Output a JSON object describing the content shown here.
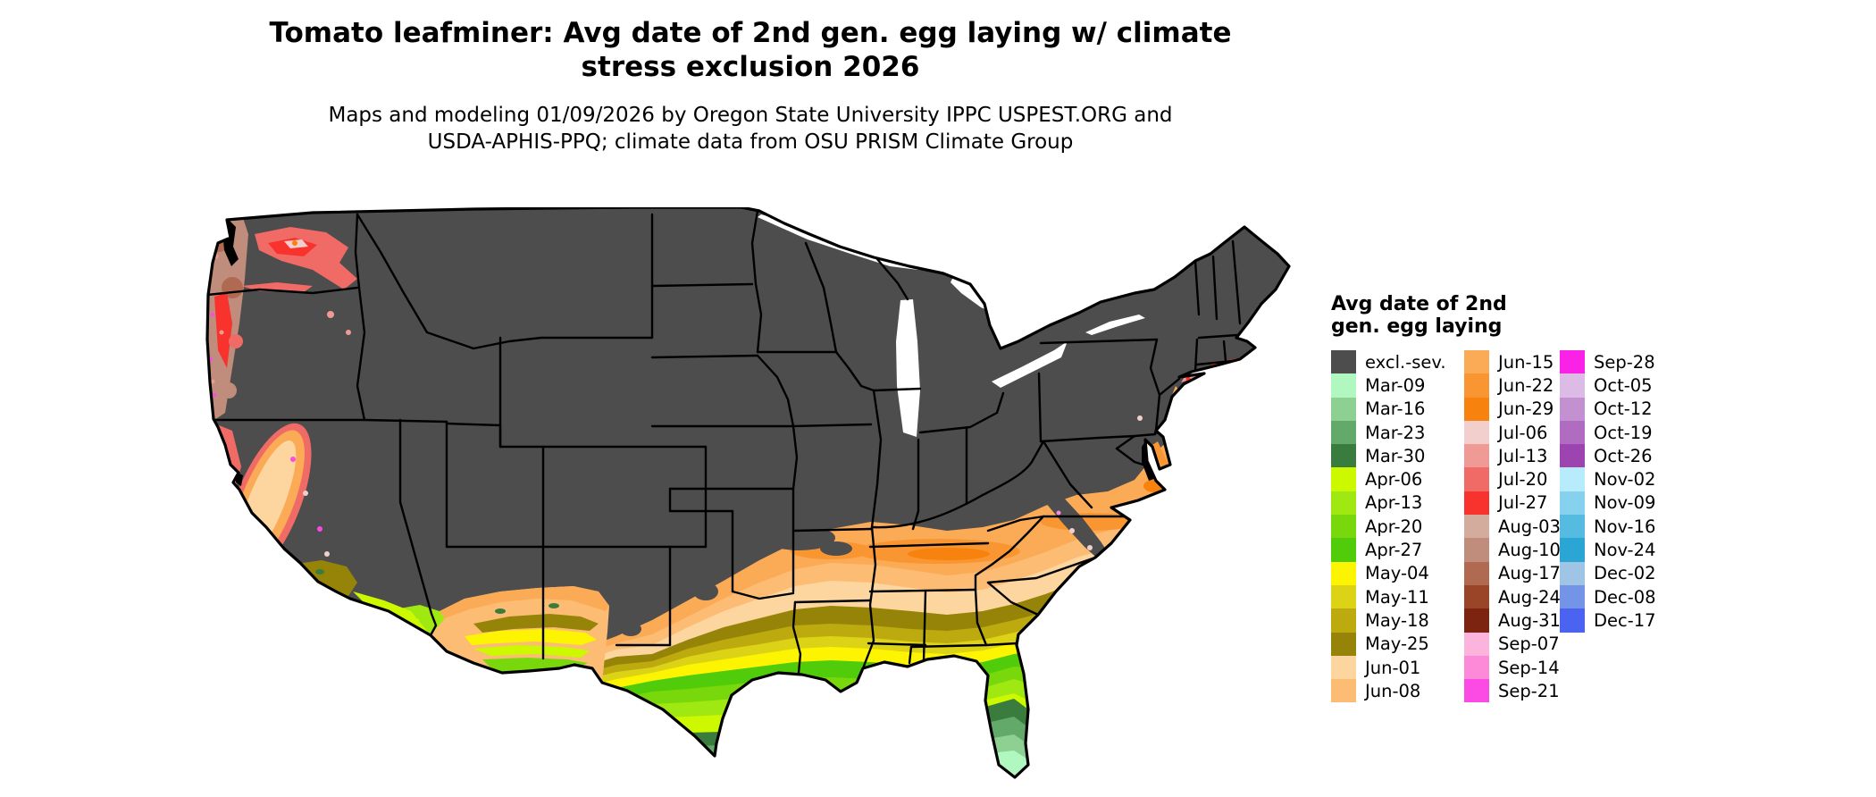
{
  "title": {
    "line1": "Tomato leafminer: Avg date of 2nd gen. egg laying w/ climate",
    "line2": "stress exclusion 2026"
  },
  "subtitle": {
    "line1": "Maps and modeling 01/09/2026 by Oregon State University IPPC USPEST.ORG and",
    "line2": "USDA-APHIS-PPQ; climate data from OSU PRISM Climate Group"
  },
  "legend": {
    "title_line1": "Avg date of 2nd",
    "title_line2": "gen. egg laying",
    "columns": [
      {
        "entries": [
          {
            "label": "excl.-sev.",
            "color": "#4d4d4d"
          },
          {
            "label": "Mar-09",
            "color": "#b0f8c0"
          },
          {
            "label": "Mar-16",
            "color": "#8dd092"
          },
          {
            "label": "Mar-23",
            "color": "#62a96a"
          },
          {
            "label": "Mar-30",
            "color": "#3a7c3e"
          },
          {
            "label": "Apr-06",
            "color": "#ccf800"
          },
          {
            "label": "Apr-13",
            "color": "#a0e812"
          },
          {
            "label": "Apr-20",
            "color": "#78d80c"
          },
          {
            "label": "Apr-27",
            "color": "#50cc0a"
          },
          {
            "label": "May-04",
            "color": "#fcf400"
          },
          {
            "label": "May-11",
            "color": "#dcd216"
          },
          {
            "label": "May-18",
            "color": "#bcaa0e"
          },
          {
            "label": "May-25",
            "color": "#968408"
          },
          {
            "label": "Jun-01",
            "color": "#fcd69e"
          },
          {
            "label": "Jun-08",
            "color": "#fcbc74"
          }
        ]
      },
      {
        "entries": [
          {
            "label": "Jun-15",
            "color": "#fbaa55"
          },
          {
            "label": "Jun-22",
            "color": "#fa9632"
          },
          {
            "label": "Jun-29",
            "color": "#f8820e"
          },
          {
            "label": "Jul-06",
            "color": "#f2cfcc"
          },
          {
            "label": "Jul-13",
            "color": "#f09a96"
          },
          {
            "label": "Jul-20",
            "color": "#f06a66"
          },
          {
            "label": "Jul-27",
            "color": "#f8322c"
          },
          {
            "label": "Aug-03",
            "color": "#d4ac9e"
          },
          {
            "label": "Aug-10",
            "color": "#c08c7c"
          },
          {
            "label": "Aug-17",
            "color": "#b06a52"
          },
          {
            "label": "Aug-24",
            "color": "#9a4428"
          },
          {
            "label": "Aug-31",
            "color": "#7c2410"
          },
          {
            "label": "Sep-07",
            "color": "#fcb4dc"
          },
          {
            "label": "Sep-14",
            "color": "#fc8ad8"
          },
          {
            "label": "Sep-21",
            "color": "#fc4ae4"
          }
        ]
      },
      {
        "entries": [
          {
            "label": "Sep-28",
            "color": "#fb22e8"
          },
          {
            "label": "Oct-05",
            "color": "#dcbce4"
          },
          {
            "label": "Oct-12",
            "color": "#c491d0"
          },
          {
            "label": "Oct-19",
            "color": "#b06cc0"
          },
          {
            "label": "Oct-26",
            "color": "#9c44b0"
          },
          {
            "label": "Nov-02",
            "color": "#b8ebfb"
          },
          {
            "label": "Nov-09",
            "color": "#86d2ee"
          },
          {
            "label": "Nov-16",
            "color": "#56bbe0"
          },
          {
            "label": "Nov-24",
            "color": "#2ba6d4"
          },
          {
            "label": "Dec-02",
            "color": "#9fc4e4"
          },
          {
            "label": "Dec-08",
            "color": "#7494e8"
          },
          {
            "label": "Dec-17",
            "color": "#4a63f0"
          }
        ]
      }
    ]
  },
  "map": {
    "base_color": "#4d4d4d",
    "water_color": "#000000",
    "background": "#ffffff"
  }
}
